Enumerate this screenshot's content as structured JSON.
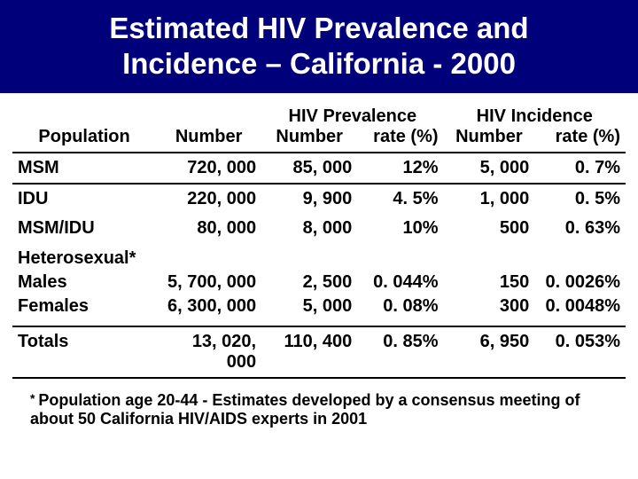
{
  "title_line1": "Estimated HIV Prevalence and",
  "title_line2": "Incidence – California - 2000",
  "headers": {
    "population": "Population",
    "number": "Number",
    "prev_group": "HIV Prevalence",
    "prev_num": "Number",
    "prev_rate": "rate (%)",
    "inc_group": "HIV Incidence",
    "inc_num": "Number",
    "inc_rate": "rate (%)"
  },
  "rows": {
    "msm": {
      "pop": "MSM",
      "num": "720, 000",
      "pn": "85, 000",
      "pr": "12%",
      "in": "5, 000",
      "ir": "0. 7%"
    },
    "idu": {
      "pop": "IDU",
      "num": "220, 000",
      "pn": "9, 900",
      "pr": "4. 5%",
      "in": "1, 000",
      "ir": "0. 5%"
    },
    "msm_idu": {
      "pop": "MSM/IDU",
      "num": "80, 000",
      "pn": "8, 000",
      "pr": "10%",
      "in": "500",
      "ir": "0. 63%"
    },
    "het": {
      "pop_l1": "Heterosexual*",
      "pop_l2": "Males",
      "pop_l3": "Females",
      "num_l1": "5, 700, 000",
      "num_l2": "6, 300, 000",
      "pn_l1": "2, 500",
      "pn_l2": "5, 000",
      "pr_l1": "0. 044%",
      "pr_l2": "0. 08%",
      "in_l1": "150",
      "in_l2": "300",
      "ir_l1": "0. 0026%",
      "ir_l2": "0. 0048%"
    },
    "totals": {
      "pop": "Totals",
      "num": "13, 020, 000",
      "pn": "110, 400",
      "pr": "0. 85%",
      "in": "6, 950",
      "ir": "0. 053%"
    }
  },
  "footnote_ast": "* ",
  "footnote": "Population age 20-44 - Estimates developed by a consensus meeting of about 50 California HIV/AIDS experts in 2001",
  "colors": {
    "title_bg": "#00007a",
    "title_fg": "#ffffff",
    "text": "#000000",
    "border": "#000000",
    "background": "#ffffff"
  }
}
